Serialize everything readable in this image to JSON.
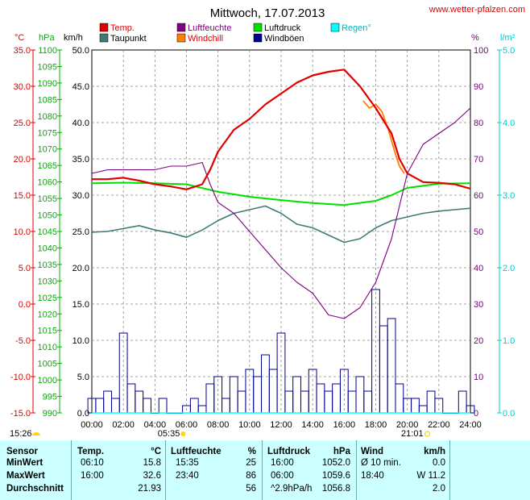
{
  "title": "Mittwoch, 17.07.2013",
  "site": "www.wetter-pfalzen.com",
  "colors": {
    "temp": "#e00000",
    "taupunkt": "#3f7a78",
    "luftfeuchte": "#800080",
    "windchill": "#ff8000",
    "luftdruck": "#00e000",
    "windboeen": "#000090",
    "regen": "#00ffff",
    "pressure_axis": "#00b000",
    "rain_axis": "#00cccc"
  },
  "legend": [
    {
      "label": "Temp.",
      "color": "#e00000",
      "text_color": "#e00000"
    },
    {
      "label": "Luftfeuchte",
      "color": "#800080",
      "text_color": "#800080"
    },
    {
      "label": "Luftdruck",
      "color": "#00e000",
      "text_color": "#000000"
    },
    {
      "label": "Regen°",
      "color": "#00ffff",
      "text_color": "#00bbbb"
    },
    {
      "label": "Taupunkt",
      "color": "#3f7a78",
      "text_color": "#000000"
    },
    {
      "label": "Windchill",
      "color": "#ff8000",
      "text_color": "#e00000"
    },
    {
      "label": "Windböen",
      "color": "#000090",
      "text_color": "#000000"
    }
  ],
  "chart_data": {
    "type": "line",
    "title": "Mittwoch, 17.07.2013",
    "x_ticks": [
      "00:00",
      "02:00",
      "04:00",
      "06:00",
      "08:00",
      "10:00",
      "12:00",
      "14:00",
      "16:00",
      "18:00",
      "20:00",
      "22:00",
      "24:00"
    ],
    "axes": {
      "temp": {
        "unit": "°C",
        "range": [
          -15,
          35
        ],
        "ticks": [
          "35.0",
          "30.0",
          "25.0",
          "20.0",
          "15.0",
          "10.0",
          "5.0",
          "0.0",
          "-5.0",
          "-10.0",
          "-15.0"
        ]
      },
      "pressure": {
        "unit": "hPa",
        "range": [
          990,
          1100
        ],
        "ticks": [
          "1100",
          "1095",
          "1090",
          "1085",
          "1080",
          "1075",
          "1070",
          "1065",
          "1060",
          "1055",
          "1050",
          "1045",
          "1040",
          "1035",
          "1030",
          "1025",
          "1020",
          "1015",
          "1010",
          "1005",
          "1000",
          "995",
          "990"
        ]
      },
      "wind": {
        "unit": "km/h",
        "range": [
          0,
          50
        ],
        "ticks": [
          "50.0",
          "45.0",
          "40.0",
          "35.0",
          "30.0",
          "25.0",
          "20.0",
          "15.0",
          "10.0",
          "5.0",
          "0.0"
        ]
      },
      "humidity": {
        "unit": "%",
        "range": [
          0,
          100
        ],
        "ticks": [
          "100",
          "90",
          "80",
          "70",
          "60",
          "50",
          "40",
          "30",
          "20",
          "10",
          "0"
        ]
      },
      "rain": {
        "unit": "l/m²",
        "range": [
          0,
          5
        ],
        "ticks": [
          "5.0",
          "4.0",
          "3.0",
          "2.0",
          "1.0",
          "0.0"
        ]
      }
    },
    "sun": {
      "sunrise": "05:35",
      "sunset": "21:01",
      "moonrise": "15:26"
    },
    "series": [
      {
        "name": "Temp.",
        "axis": "temp",
        "x": [
          0,
          1,
          2,
          3,
          4,
          5,
          6,
          7,
          7.5,
          8,
          9,
          10,
          11,
          12,
          13,
          14,
          15,
          16,
          17,
          18,
          19,
          19.5,
          20,
          21,
          22,
          23,
          24
        ],
        "values": [
          17.2,
          17.2,
          17.4,
          17.0,
          16.5,
          16.2,
          15.8,
          16.5,
          18.5,
          21.0,
          24.0,
          25.5,
          27.5,
          29.0,
          30.5,
          31.5,
          32.0,
          32.3,
          30.0,
          27.0,
          23.5,
          20.0,
          18.0,
          16.8,
          16.7,
          16.5,
          15.9
        ]
      },
      {
        "name": "Luftfeuchte",
        "axis": "humidity",
        "x": [
          0,
          1,
          2,
          3,
          4,
          5,
          6,
          7,
          7.5,
          8,
          9,
          10,
          11,
          12,
          13,
          14,
          15,
          16,
          17,
          18,
          19,
          20,
          21,
          22,
          23,
          24
        ],
        "values": [
          66,
          67,
          67,
          67,
          67,
          68,
          68,
          69,
          63,
          58,
          55,
          50,
          45,
          40,
          36,
          33,
          27,
          26,
          29,
          36,
          48,
          66,
          74,
          77,
          80,
          84
        ]
      },
      {
        "name": "Luftdruck",
        "axis": "pressure",
        "x": [
          0,
          2,
          4,
          6,
          8,
          10,
          12,
          14,
          16,
          18,
          19,
          20,
          22,
          24
        ],
        "values": [
          1059.6,
          1059.8,
          1059.6,
          1059.3,
          1057.0,
          1055.5,
          1054.5,
          1053.6,
          1053.0,
          1054.3,
          1056.0,
          1058.2,
          1059.5,
          1059.6
        ]
      },
      {
        "name": "Taupunkt",
        "axis": "temp",
        "x": [
          0,
          1,
          2,
          3,
          4,
          5,
          6,
          7,
          8,
          9,
          10,
          11,
          12,
          13,
          14,
          15,
          16,
          17,
          18,
          19,
          20,
          21,
          22,
          23,
          24
        ],
        "values": [
          9.9,
          10.0,
          10.4,
          10.8,
          10.2,
          9.8,
          9.2,
          10.2,
          11.5,
          12.5,
          13.0,
          13.5,
          12.5,
          11.0,
          10.5,
          9.5,
          8.5,
          9.0,
          10.5,
          11.5,
          12.0,
          12.5,
          12.8,
          13.0,
          13.2
        ]
      },
      {
        "name": "Windchill",
        "axis": "temp",
        "x": [
          17.2,
          17.6,
          18.0,
          18.4,
          18.8,
          19.2,
          19.5,
          19.8
        ],
        "values": [
          28.0,
          27.0,
          27.5,
          26.5,
          24.0,
          21.0,
          19.0,
          18.0
        ]
      },
      {
        "name": "Windböen",
        "axis": "wind",
        "type": "bar",
        "x": [
          0,
          0.5,
          1,
          1.5,
          2,
          2.5,
          3,
          3.5,
          4,
          4.5,
          5,
          5.5,
          6,
          6.5,
          7,
          7.5,
          8,
          8.5,
          9,
          9.5,
          10,
          10.5,
          11,
          11.5,
          12,
          12.5,
          13,
          13.5,
          14,
          14.5,
          15,
          15.5,
          16,
          16.5,
          17,
          17.5,
          18,
          18.5,
          19,
          19.5,
          20,
          20.5,
          21,
          21.5,
          22,
          22.5,
          23,
          23.5,
          24
        ],
        "values": [
          2,
          2,
          3,
          2,
          11,
          4,
          3,
          2,
          0,
          2,
          0,
          0,
          1,
          2,
          1,
          4,
          5,
          2,
          5,
          3,
          6,
          5,
          8,
          6,
          11,
          3,
          5,
          3,
          6,
          4,
          3,
          4,
          6,
          3,
          5,
          3,
          17,
          12,
          13,
          4,
          2,
          2,
          1,
          3,
          2,
          0,
          0,
          3,
          1
        ]
      },
      {
        "name": "Regen°",
        "axis": "rain",
        "x": [
          0,
          24
        ],
        "values": [
          0,
          0
        ]
      }
    ]
  },
  "stats": {
    "headers": {
      "sensor": "Sensor",
      "temp": "Temp.",
      "temp_unit": "°C",
      "hum": "Luftfeuchte",
      "hum_unit": "%",
      "press": "Luftdruck",
      "press_unit": "hPa",
      "wind": "Wind",
      "wind_unit": "km/h"
    },
    "rows": [
      {
        "label": "MinWert",
        "temp_time": "06:10",
        "temp": "15.8",
        "hum_time": "15:35",
        "hum": "25",
        "press_time": "16:00",
        "press": "1052.0",
        "wind_time": "Ø 10 min.",
        "wind": "0.0"
      },
      {
        "label": "MaxWert",
        "temp_time": "16:00",
        "temp": "32.6",
        "hum_time": "23:40",
        "hum": "86",
        "press_time": "06:00",
        "press": "1059.6",
        "wind_time": "18:40",
        "wind": "W 11.2"
      },
      {
        "label": "Durchschnitt",
        "temp_time": "",
        "temp": "21.93",
        "hum_time": "",
        "hum": "56",
        "press_time": "^2.9hPa/h",
        "press": "1056.8",
        "wind_time": "",
        "wind": "2.0"
      }
    ]
  }
}
